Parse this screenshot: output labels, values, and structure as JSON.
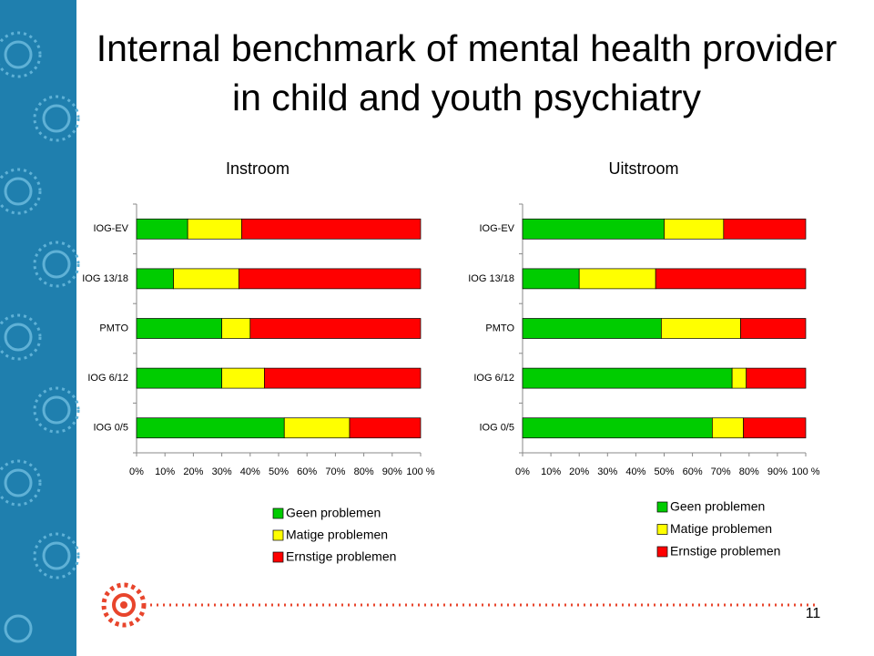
{
  "title": "Internal benchmark of mental health provider in child and youth psychiatry",
  "page_number": "11",
  "chart_data": [
    {
      "type": "bar",
      "orientation": "horizontal",
      "stacked": true,
      "title": "Instroom",
      "categories": [
        "IOG-EV",
        "IOG 13/18",
        "PMTO",
        "IOG 6/12",
        "IOG 0/5"
      ],
      "series": [
        {
          "name": "Geen problemen",
          "color": "#00cc00",
          "values": [
            18,
            13,
            30,
            30,
            52
          ]
        },
        {
          "name": "Matige problemen",
          "color": "#ffff00",
          "values": [
            19,
            23,
            10,
            15,
            23
          ]
        },
        {
          "name": "Ernstige problemen",
          "color": "#ff0000",
          "values": [
            63,
            64,
            60,
            55,
            25
          ]
        }
      ],
      "xlim": [
        0,
        100
      ],
      "xticks": [
        {
          "value": 0,
          "label": "0%"
        },
        {
          "value": 10,
          "label": "10%"
        },
        {
          "value": 20,
          "label": "20%"
        },
        {
          "value": 30,
          "label": "30%"
        },
        {
          "value": 40,
          "label": "40%"
        },
        {
          "value": 50,
          "label": "50%"
        },
        {
          "value": 60,
          "label": "60%"
        },
        {
          "value": 70,
          "label": "70%"
        },
        {
          "value": 80,
          "label": "80%"
        },
        {
          "value": 90,
          "label": "90%"
        },
        {
          "value": 100,
          "label": "100 %"
        }
      ]
    },
    {
      "type": "bar",
      "orientation": "horizontal",
      "stacked": true,
      "title": "Uitstroom",
      "categories": [
        "IOG-EV",
        "IOG 13/18",
        "PMTO",
        "IOG 6/12",
        "IOG 0/5"
      ],
      "series": [
        {
          "name": "Geen problemen",
          "color": "#00cc00",
          "values": [
            50,
            20,
            49,
            74,
            67
          ]
        },
        {
          "name": "Matige problemen",
          "color": "#ffff00",
          "values": [
            21,
            27,
            28,
            5,
            11
          ]
        },
        {
          "name": "Ernstige problemen",
          "color": "#ff0000",
          "values": [
            29,
            53,
            23,
            21,
            22
          ]
        }
      ],
      "xlim": [
        0,
        100
      ],
      "xticks": [
        {
          "value": 0,
          "label": "0%"
        },
        {
          "value": 10,
          "label": "10%"
        },
        {
          "value": 20,
          "label": "20%"
        },
        {
          "value": 30,
          "label": "30%"
        },
        {
          "value": 40,
          "label": "40%"
        },
        {
          "value": 50,
          "label": "50%"
        },
        {
          "value": 60,
          "label": "60%"
        },
        {
          "value": 70,
          "label": "70%"
        },
        {
          "value": 80,
          "label": "80%"
        },
        {
          "value": 90,
          "label": "90%"
        },
        {
          "value": 100,
          "label": "100 %"
        }
      ]
    }
  ]
}
